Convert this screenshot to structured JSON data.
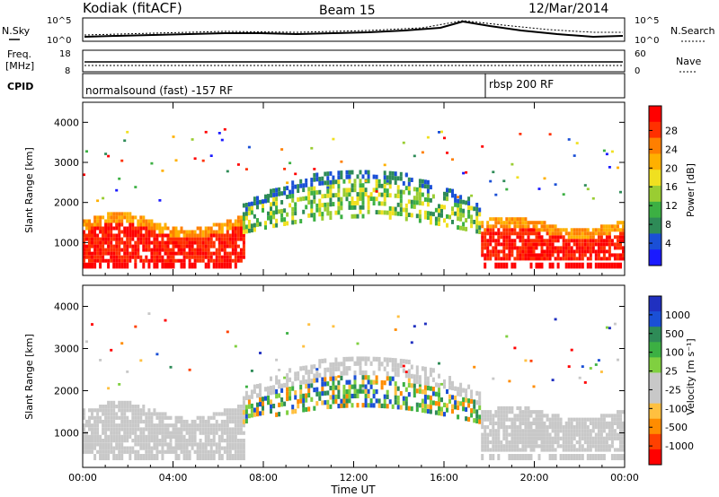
{
  "header": {
    "title": "Kodiak (fitACF)",
    "beam": "Beam 15",
    "date": "12/Mar/2014"
  },
  "noise_panel": {
    "left_label": "N.Sky",
    "right_label": "N.Search",
    "ticks_left": [
      "10^5",
      "10^0"
    ],
    "ticks_right": [
      "10^5",
      "10^0"
    ]
  },
  "freq_panel": {
    "left_label_1": "Freq.",
    "left_label_2": "[MHz]",
    "right_label": "Nave",
    "ticks_left": [
      "18",
      "8"
    ],
    "ticks_right": [
      "60",
      "0"
    ]
  },
  "cpid_panel": {
    "label": "CPID",
    "mode_1": "normalsound (fast) -157 RF",
    "mode_2": "rbsp 200 RF"
  },
  "colors": {
    "power_scale": [
      "#1a1aff",
      "#1a4fd6",
      "#2e8b57",
      "#3cb043",
      "#9acd32",
      "#f0e020",
      "#ffb000",
      "#ff7f00",
      "#ff3000",
      "#ff0000"
    ],
    "velocity_scale": [
      "#ff0000",
      "#ff4000",
      "#ff8c00",
      "#ffc040",
      "#c8c8c8",
      "#c8c8c8",
      "#80d040",
      "#3cb043",
      "#2e8b57",
      "#1a4fd6",
      "#2030c0"
    ]
  },
  "chart_data": [
    {
      "type": "heatmap",
      "title": "Power",
      "xlabel": "Time UT",
      "ylabel": "Slant Range [km]",
      "x_ticks": [
        "00:00",
        "04:00",
        "08:00",
        "12:00",
        "16:00",
        "20:00",
        "00:00"
      ],
      "xlim": [
        0,
        24
      ],
      "ylim": [
        180,
        4500
      ],
      "y_ticks": [
        1000,
        2000,
        3000,
        4000
      ],
      "colorbar": {
        "label": "Power [dB]",
        "ticks": [
          "4",
          "8",
          "12",
          "16",
          "20",
          "24",
          "28"
        ]
      }
    },
    {
      "type": "heatmap",
      "title": "Velocity",
      "xlabel": "Time UT",
      "ylabel": "Slant Range [km]",
      "x_ticks": [
        "00:00",
        "04:00",
        "08:00",
        "12:00",
        "16:00",
        "20:00",
        "00:00"
      ],
      "xlim": [
        0,
        24
      ],
      "ylim": [
        180,
        4500
      ],
      "y_ticks": [
        1000,
        2000,
        3000,
        4000
      ],
      "colorbar": {
        "label": "Velocity [m s⁻¹]",
        "ticks": [
          "1000",
          "500",
          "100",
          "25",
          "-25",
          "-100",
          "-500",
          "-1000"
        ]
      }
    }
  ]
}
